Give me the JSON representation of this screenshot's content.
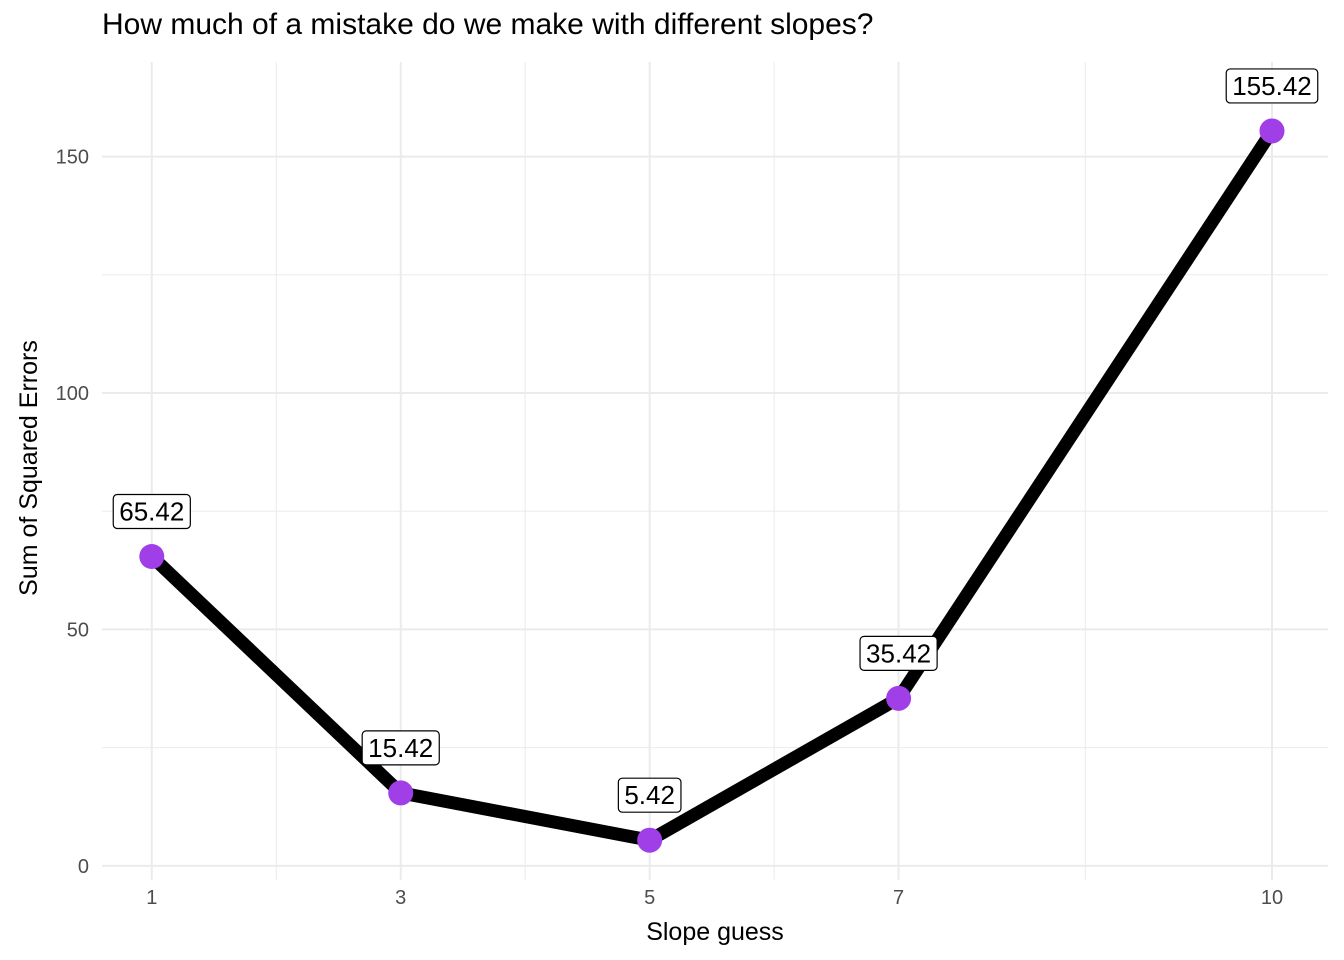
{
  "chart_data": {
    "type": "line",
    "title": "How much of a mistake do we make with different slopes?",
    "xlabel": "Slope guess",
    "ylabel": "Sum of Squared Errors",
    "x_ticks": [
      1,
      3,
      5,
      7,
      10
    ],
    "x_minor_ticks": [
      2,
      4,
      6,
      8.5
    ],
    "y_ticks": [
      0,
      50,
      100,
      150
    ],
    "y_minor_ticks": [
      25,
      75,
      125
    ],
    "xlim": [
      0.6,
      10.45
    ],
    "ylim": [
      -3,
      170
    ],
    "grid": true,
    "points": [
      {
        "x": 1,
        "y": 65.42,
        "label": "65.42"
      },
      {
        "x": 3,
        "y": 15.42,
        "label": "15.42"
      },
      {
        "x": 5,
        "y": 5.42,
        "label": "5.42"
      },
      {
        "x": 7,
        "y": 35.42,
        "label": "35.42"
      },
      {
        "x": 10,
        "y": 155.42,
        "label": "155.42"
      }
    ],
    "colors": {
      "line": "#000000",
      "point": "#a03ee8",
      "grid": "#ebebeb",
      "tick_text": "#4d4d4d"
    }
  }
}
